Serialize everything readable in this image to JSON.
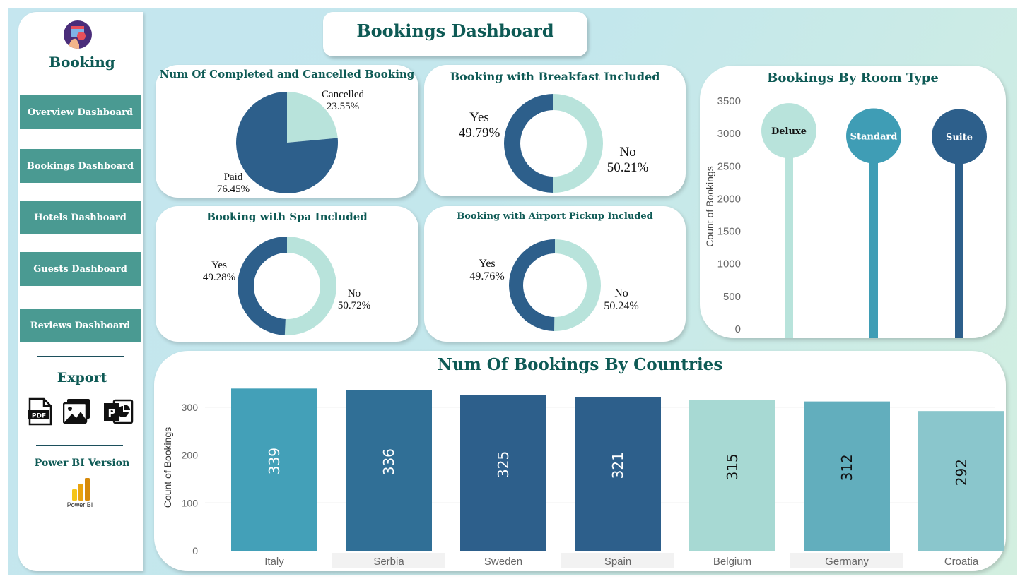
{
  "app": {
    "logo_text": "Booking"
  },
  "header": {
    "title": "Bookings Dashboard"
  },
  "nav": {
    "items": [
      {
        "label": "Overview Dashboard"
      },
      {
        "label": "Bookings Dashboard"
      },
      {
        "label": "Hotels Dashboard"
      },
      {
        "label": "Guests Dashboard"
      },
      {
        "label": "Reviews Dashboard"
      }
    ]
  },
  "export": {
    "title": "Export",
    "pdf_label": "PDF",
    "icons": [
      "pdf-icon",
      "image-icon",
      "powerpoint-icon"
    ]
  },
  "powerbi": {
    "title": "Power BI Version",
    "label": "Power BI",
    "icon": "power-bi-icon"
  },
  "colors": {
    "dark": "#2d5f8b",
    "mid": "#3f9db5",
    "light": "#b8e3db",
    "title": "#0e5a55",
    "nav": "#4a9a92"
  },
  "charts": {
    "status": {
      "title": "Num Of Completed and Cancelled Booking",
      "labels": {
        "cancelled": "Cancelled",
        "cancelled_pct": "23.55%",
        "paid": "Paid",
        "paid_pct": "76.45%"
      }
    },
    "breakfast": {
      "title": "Booking with Breakfast Included",
      "labels": {
        "yes": "Yes",
        "yes_pct": "49.79%",
        "no": "No",
        "no_pct": "50.21%"
      }
    },
    "spa": {
      "title": "Booking with Spa Included",
      "labels": {
        "yes": "Yes",
        "yes_pct": "49.28%",
        "no": "No",
        "no_pct": "50.72%"
      }
    },
    "airport": {
      "title": "Booking with Airport Pickup Included",
      "labels": {
        "yes": "Yes",
        "yes_pct": "49.76%",
        "no": "No",
        "no_pct": "50.24%"
      }
    },
    "room": {
      "title": "Bookings By Room Type",
      "ylabel": "Count of Bookings",
      "yticks": [
        "3500",
        "3000",
        "2500",
        "2000",
        "1500",
        "1000",
        "500",
        "0"
      ]
    },
    "countries": {
      "title": "Num Of Bookings By Countries",
      "ylabel": "Count of Bookings",
      "yticks": [
        "300",
        "200",
        "100",
        "0"
      ]
    }
  },
  "chart_data": [
    {
      "type": "pie",
      "title": "Num Of Completed and Cancelled Booking",
      "categories": [
        "Cancelled",
        "Paid"
      ],
      "values": [
        23.55,
        76.45
      ],
      "colors": [
        "#b8e3db",
        "#2d5f8b"
      ]
    },
    {
      "type": "pie",
      "title": "Booking with Breakfast Included",
      "categories": [
        "No",
        "Yes"
      ],
      "values": [
        50.21,
        49.79
      ],
      "colors": [
        "#b8e3db",
        "#2d5f8b"
      ],
      "donut": true
    },
    {
      "type": "pie",
      "title": "Booking with Spa Included",
      "categories": [
        "No",
        "Yes"
      ],
      "values": [
        50.72,
        49.28
      ],
      "colors": [
        "#b8e3db",
        "#2d5f8b"
      ],
      "donut": true
    },
    {
      "type": "pie",
      "title": "Booking with Airport Pickup Included",
      "categories": [
        "No",
        "Yes"
      ],
      "values": [
        50.24,
        49.76
      ],
      "colors": [
        "#b8e3db",
        "#2d5f8b"
      ],
      "donut": true
    },
    {
      "type": "bar",
      "title": "Bookings By Room Type",
      "ylabel": "Count of Bookings",
      "categories": [
        "Deluxe",
        "Standard",
        "Suite"
      ],
      "values": [
        3000,
        2920,
        2910
      ],
      "ylim": [
        0,
        3500
      ],
      "colors": [
        "#b8e3db",
        "#3f9db5",
        "#2d5f8b"
      ],
      "style": "lollipop"
    },
    {
      "type": "bar",
      "title": "Num Of Bookings By Countries",
      "ylabel": "Count of Bookings",
      "categories": [
        "Italy",
        "Serbia",
        "Sweden",
        "Spain",
        "Belgium",
        "Germany",
        "Croatia"
      ],
      "values": [
        339,
        336,
        325,
        321,
        315,
        312,
        292
      ],
      "ylim": [
        0,
        350
      ],
      "colors": [
        "#43a0b8",
        "#306f96",
        "#2d5f8b",
        "#2d5f8b",
        "#a7d9d3",
        "#62aebd",
        "#8ac6cc"
      ],
      "label_colors": [
        "#ffffff",
        "#ffffff",
        "#ffffff",
        "#ffffff",
        "#111111",
        "#111111",
        "#111111"
      ],
      "grid": true
    }
  ]
}
